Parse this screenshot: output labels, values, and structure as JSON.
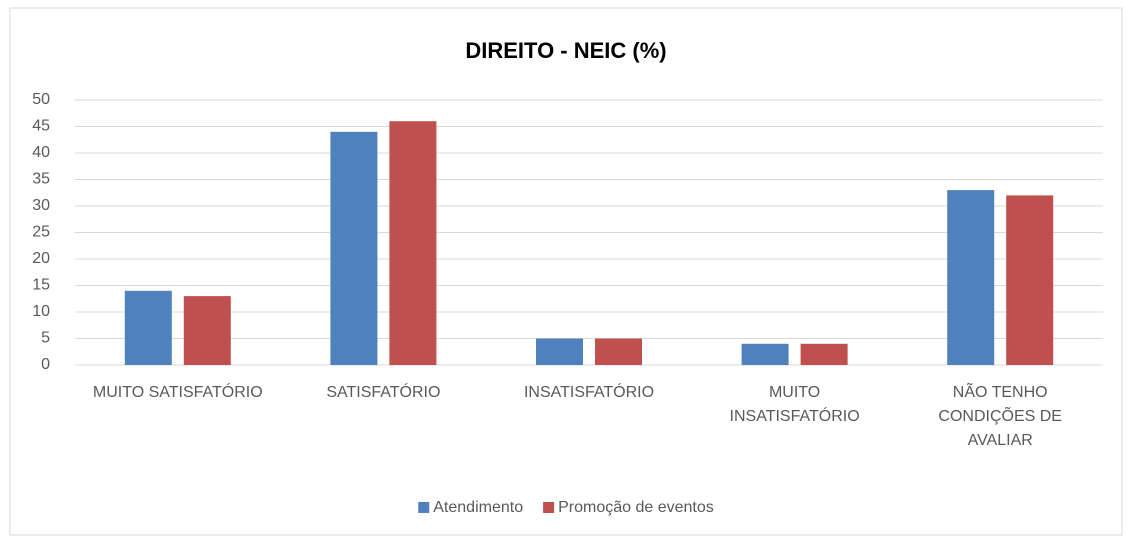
{
  "chart_data": {
    "type": "bar",
    "title": "DIREITO - NEIC (%)",
    "categories": [
      "MUITO SATISFATÓRIO",
      "SATISFATÓRIO",
      "INSATISFATÓRIO",
      "MUITO INSATISFATÓRIO",
      "NÃO TENHO CONDIÇÕES DE AVALIAR"
    ],
    "series": [
      {
        "name": "Atendimento",
        "color": "#4f81bd",
        "values": [
          14,
          44,
          5,
          4,
          33
        ]
      },
      {
        "name": "Promoção de eventos",
        "color": "#c0504d",
        "values": [
          13,
          46,
          5,
          4,
          32
        ]
      }
    ],
    "ylim": [
      0,
      50
    ],
    "yticks": [
      0,
      5,
      10,
      15,
      20,
      25,
      30,
      35,
      40,
      45,
      50
    ],
    "grid": true,
    "legend": "bottom"
  }
}
